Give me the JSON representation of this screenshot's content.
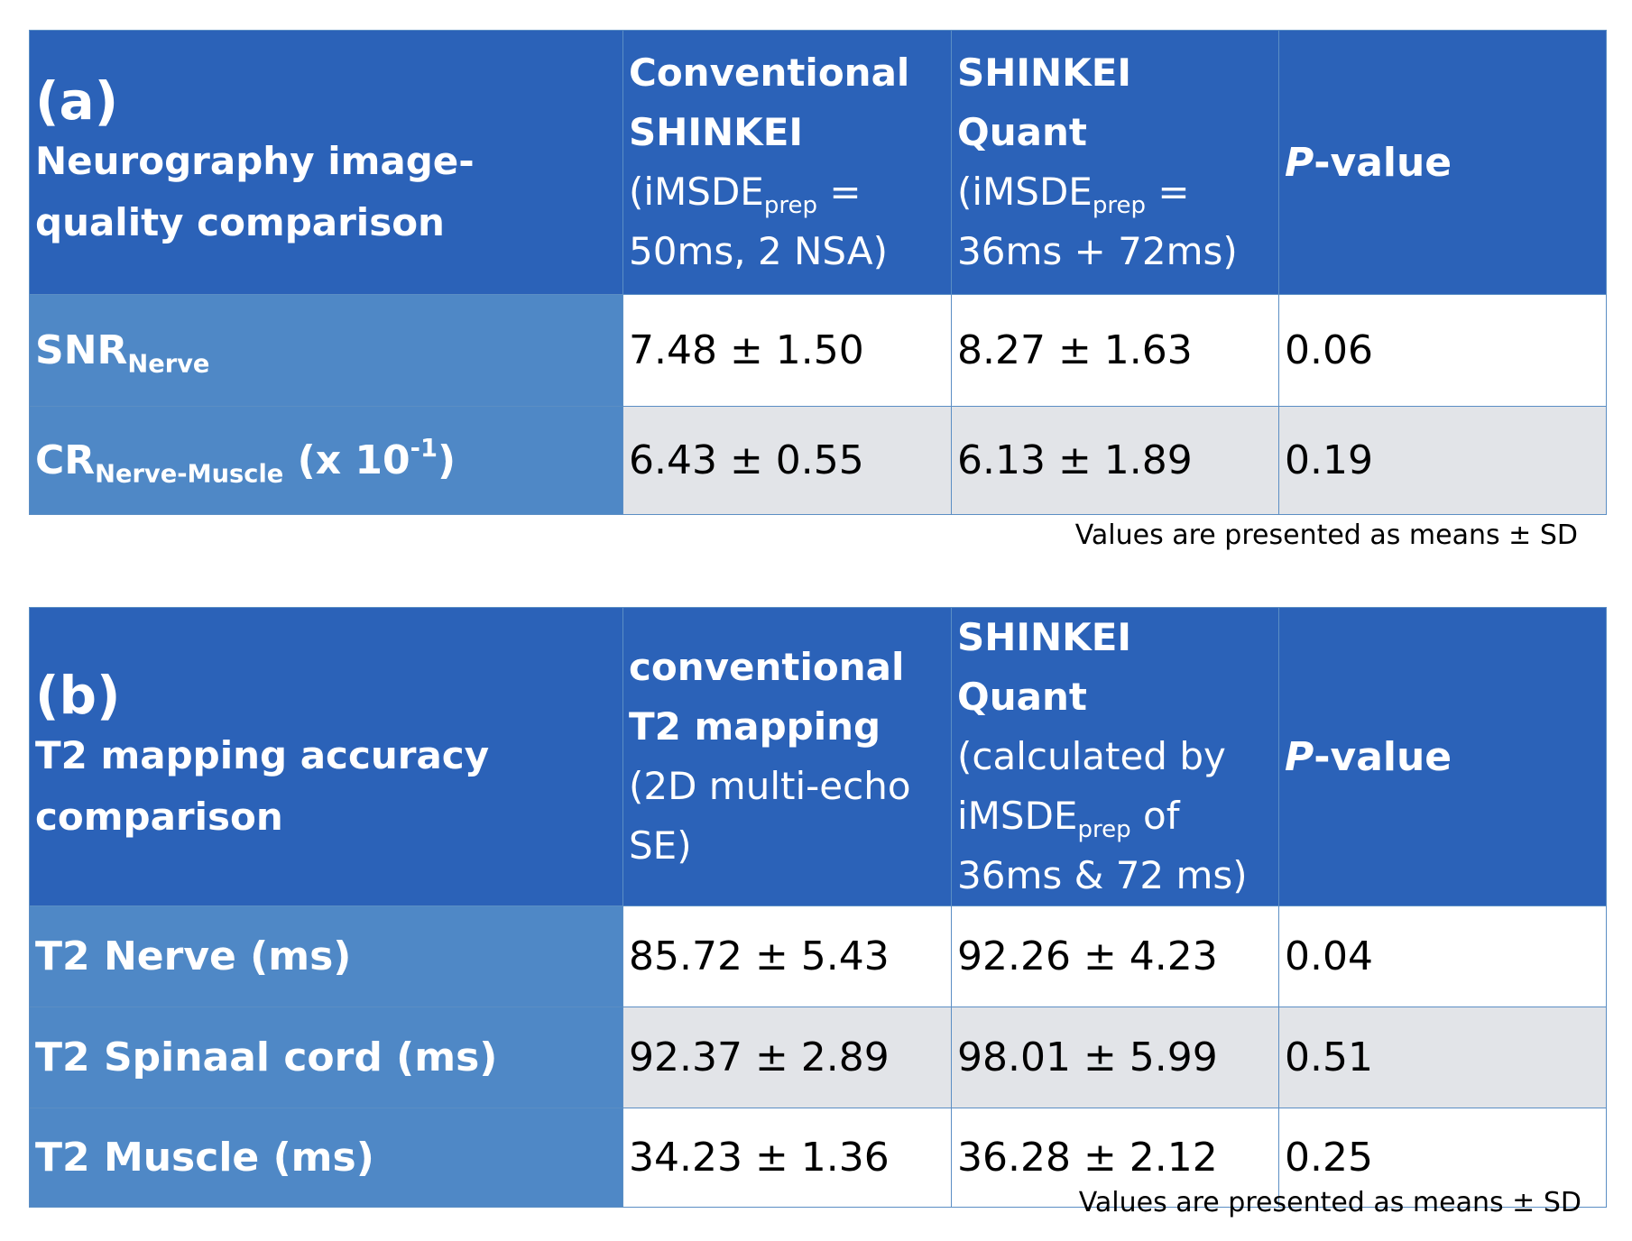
{
  "table_a": {
    "label": "(a)",
    "title": "Neurography image-quality comparison",
    "col1": {
      "line1": "Conventional",
      "line2": "SHINKEI",
      "paren_open": "(iMSDE",
      "sub": "prep",
      "eq": " =",
      "line4": "50ms, 2 NSA)"
    },
    "col2": {
      "line1": "SHINKEI Quant",
      "paren_open": "(iMSDE",
      "sub": "prep",
      "eq": " =",
      "line3": "36ms + 72ms)"
    },
    "col3": {
      "p": "P",
      "rest": "-value"
    },
    "rows": [
      {
        "label_main": "SNR",
        "label_sub": "Nerve",
        "v1": "7.48 ± 1.50",
        "v2": "8.27 ± 1.63",
        "p": "0.06"
      },
      {
        "label_main": "CR",
        "label_sub": "Nerve-Muscle",
        "label_tail": " (x 10",
        "label_sup": "-1",
        "label_close": ")",
        "v1": "6.43 ± 0.55",
        "v2": "6.13 ± 1.89",
        "p": "0.19"
      }
    ],
    "note": "Values are presented as means ± SD"
  },
  "table_b": {
    "label": "(b)",
    "title": "T2 mapping accuracy comparison",
    "col1": {
      "line1": "conventional",
      "line2": "T2 mapping",
      "line3": "(2D multi-echo",
      "line4": "SE)"
    },
    "col2": {
      "line1": "SHINKEI Quant",
      "line2": "(calculated by",
      "pre": "iMSDE",
      "sub": "prep",
      "post": " of",
      "line4": "36ms & 72 ms)"
    },
    "col3": {
      "p": "P",
      "rest": "-value"
    },
    "rows": [
      {
        "label": "T2 Nerve (ms)",
        "v1": "85.72 ± 5.43",
        "v2": "92.26 ± 4.23",
        "p": "0.04"
      },
      {
        "label": "T2 Spinaal cord (ms)",
        "v1": "92.37 ± 2.89",
        "v2": "98.01 ± 5.99",
        "p": "0.51"
      },
      {
        "label": "T2 Muscle (ms)",
        "v1": "34.23 ± 1.36",
        "v2": "36.28 ± 2.12",
        "p": "0.25"
      }
    ],
    "note": "Values are presented as means ± SD"
  }
}
